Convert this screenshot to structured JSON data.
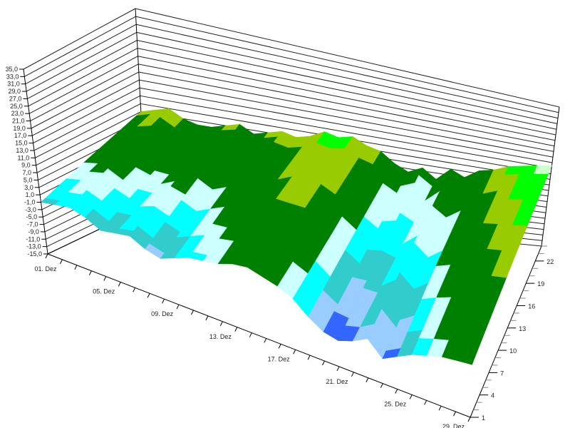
{
  "chart_data": {
    "type": "surface",
    "title": "",
    "x_ticks": [
      "01. Dez",
      "05. Dez",
      "09. Dez",
      "13. Dez",
      "17. Dez",
      "21. Dez",
      "25. Dez",
      "29. Dez"
    ],
    "x_tick_days": [
      1,
      5,
      9,
      13,
      17,
      21,
      25,
      29
    ],
    "x_range": [
      1,
      30
    ],
    "depth_ticks": [
      "1",
      "4",
      "7",
      "10",
      "13",
      "16",
      "19",
      "22"
    ],
    "depth_range": [
      1,
      24
    ],
    "z_ticks": [
      "35,0",
      "33,0",
      "31,0",
      "29,0",
      "27,0",
      "25,0",
      "23,0",
      "21,0",
      "19,0",
      "17,0",
      "15,0",
      "13,0",
      "11,0",
      "9,0",
      "7,0",
      "5,0",
      "3,0",
      "1,0",
      "-1,0",
      "-3,0",
      "-5,0",
      "-7,0",
      "-9,0",
      "-11,0",
      "-13,0",
      "-15,0"
    ],
    "z_range": [
      -15,
      35
    ],
    "grid": true,
    "sample_series": [
      1,
      12,
      24
    ],
    "z_values_by_day": [
      [
        -1,
        4,
        9
      ],
      [
        0,
        5,
        10
      ],
      [
        1,
        6,
        11
      ],
      [
        0,
        4,
        9
      ],
      [
        -2,
        3,
        8
      ],
      [
        -1,
        3,
        8
      ],
      [
        0,
        5,
        9
      ],
      [
        -2,
        4,
        10
      ],
      [
        -3,
        2,
        8
      ],
      [
        -1,
        4,
        9
      ],
      [
        1,
        6,
        10
      ],
      [
        2,
        6,
        9
      ],
      [
        3,
        7,
        10
      ],
      [
        5,
        9,
        12
      ],
      [
        6,
        9,
        11
      ],
      [
        5,
        9,
        12
      ],
      [
        4,
        7,
        10
      ],
      [
        2,
        5,
        9
      ],
      [
        -2,
        2,
        6
      ],
      [
        -5,
        -1,
        4
      ],
      [
        -6,
        0,
        6
      ],
      [
        -4,
        -1,
        3
      ],
      [
        -1,
        3,
        7
      ],
      [
        -6,
        -1,
        5
      ],
      [
        -3,
        3,
        8
      ],
      [
        0,
        5,
        9
      ],
      [
        2,
        7,
        11
      ],
      [
        4,
        8,
        12
      ],
      [
        5,
        9,
        13
      ],
      [
        6,
        10,
        14
      ]
    ],
    "color_levels": [
      {
        "max": -4,
        "color": "#3366ff"
      },
      {
        "max": -2,
        "color": "#99ccff"
      },
      {
        "max": 0,
        "color": "#33cccc"
      },
      {
        "max": 2,
        "color": "#00ffff"
      },
      {
        "max": 4,
        "color": "#ccffff"
      },
      {
        "max": 9,
        "color": "#008000"
      },
      {
        "max": 11,
        "color": "#99cc00"
      },
      {
        "max": 13,
        "color": "#00ff00"
      },
      {
        "max": 99,
        "color": "#ccffcc"
      }
    ]
  }
}
